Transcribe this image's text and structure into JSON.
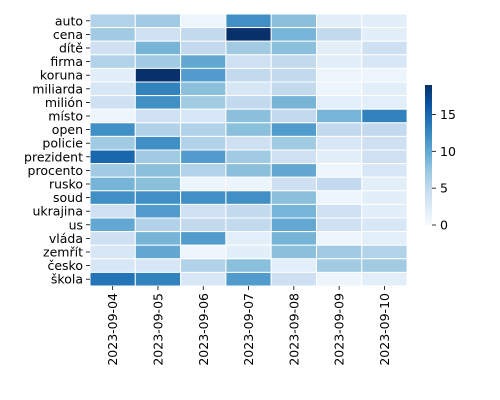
{
  "chart_data": {
    "type": "heatmap",
    "x": [
      "2023-09-04",
      "2023-09-05",
      "2023-09-06",
      "2023-09-07",
      "2023-09-08",
      "2023-09-09",
      "2023-09-10"
    ],
    "y": [
      "auto",
      "cena",
      "dítě",
      "firma",
      "koruna",
      "miliarda",
      "milión",
      "místo",
      "open",
      "policie",
      "prezident",
      "procento",
      "rusko",
      "soud",
      "ukrajina",
      "us",
      "vláda",
      "zemřít",
      "česko",
      "škola"
    ],
    "values": [
      [
        6,
        7,
        1,
        12,
        8,
        2,
        2
      ],
      [
        7,
        4,
        5,
        19,
        9,
        5,
        2
      ],
      [
        4,
        9,
        5,
        7,
        8,
        2,
        4
      ],
      [
        6,
        7,
        10,
        4,
        5,
        2,
        3
      ],
      [
        2,
        19,
        11,
        5,
        5,
        1,
        1
      ],
      [
        3,
        13,
        8,
        3,
        5,
        1,
        2
      ],
      [
        4,
        12,
        7,
        5,
        9,
        2,
        2
      ],
      [
        1,
        4,
        3,
        8,
        5,
        9,
        13
      ],
      [
        12,
        6,
        6,
        8,
        11,
        5,
        5
      ],
      [
        7,
        12,
        6,
        4,
        7,
        3,
        4
      ],
      [
        15,
        7,
        11,
        7,
        4,
        2,
        4
      ],
      [
        7,
        8,
        6,
        8,
        10,
        1,
        3
      ],
      [
        9,
        8,
        1,
        1,
        4,
        5,
        2
      ],
      [
        12,
        12,
        12,
        12,
        8,
        1,
        2
      ],
      [
        4,
        11,
        4,
        5,
        9,
        4,
        2
      ],
      [
        10,
        6,
        5,
        5,
        10,
        4,
        3
      ],
      [
        4,
        9,
        11,
        2,
        9,
        1,
        2
      ],
      [
        3,
        10,
        1,
        2,
        8,
        7,
        6
      ],
      [
        3,
        3,
        6,
        8,
        2,
        7,
        7
      ],
      [
        14,
        13,
        3,
        11,
        4,
        1,
        2
      ]
    ],
    "vmin": 0,
    "vmax": 19,
    "colormap": [
      "#f7fbff",
      "#deebf7",
      "#c6dbef",
      "#9ecae1",
      "#6baed6",
      "#4292c6",
      "#2171b5",
      "#08519c",
      "#08306b"
    ],
    "colorbar_ticks": [
      0,
      5,
      10,
      15
    ],
    "grid_line_color": "#ffffff",
    "title": "",
    "xlabel": "",
    "ylabel": ""
  }
}
